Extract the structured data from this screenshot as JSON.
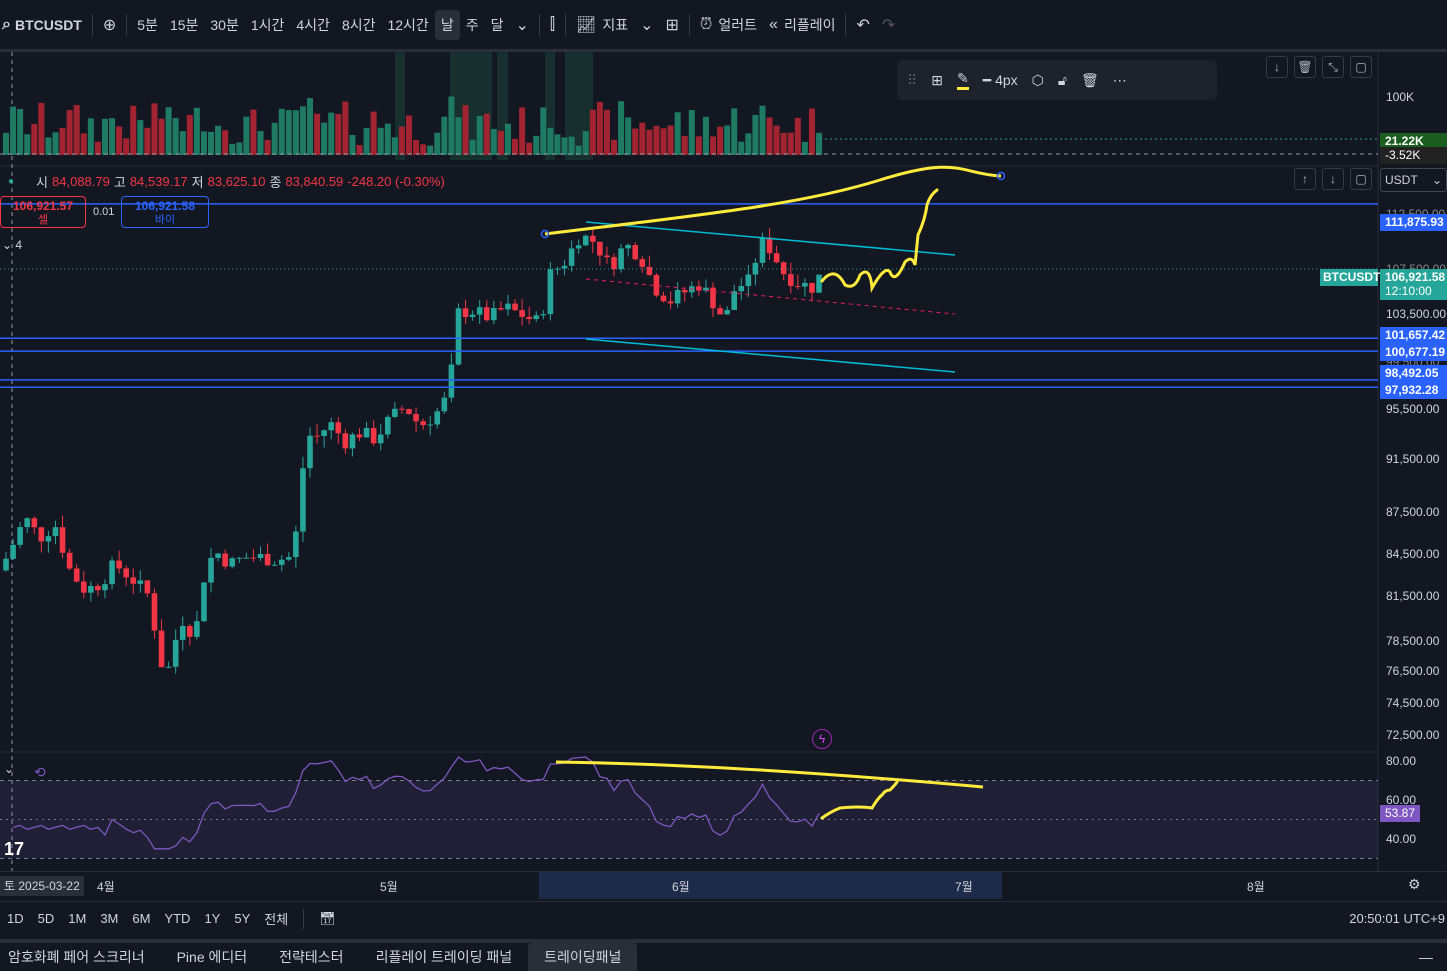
{
  "toolbar": {
    "symbol": "BTCUSDT",
    "intervals": [
      "5분",
      "15분",
      "30분",
      "1시간",
      "4시간",
      "8시간",
      "12시간",
      "날",
      "주",
      "달"
    ],
    "active_interval": "날",
    "indicators_label": "지표",
    "alert_label": "얼러트",
    "replay_label": "리플레이"
  },
  "legend": {
    "open_label": "시",
    "open": "84,088.79",
    "high_label": "고",
    "high": "84,539.17",
    "low_label": "저",
    "low": "83,625.10",
    "close_label": "종",
    "close": "83,840.59",
    "change": "-248.20 (-0.30%)"
  },
  "order": {
    "sell_price": "106,921.57",
    "sell_label": "셀",
    "spread": "0.01",
    "buy_price": "106,921.58",
    "buy_label": "바이"
  },
  "collapse_count": "4",
  "drawing_toolbar": {
    "width_label": "4px"
  },
  "currency_select": "USDT",
  "volume_axis": {
    "v100k": "100K",
    "last_vol": "21.22K",
    "last_delta": "-3.52K"
  },
  "price_axis": {
    "ticks": [
      "103,500.00",
      "95,500.00",
      "91,500.00",
      "87,500.00",
      "84,500.00",
      "81,500.00",
      "78,500.00",
      "76,500.00",
      "74,500.00",
      "72,500.00"
    ],
    "partial_ticks": [
      "112,500.00",
      "107,500.00",
      "99,500.00"
    ]
  },
  "hlines": [
    {
      "price": "111,875.93"
    },
    {
      "price": "101,657.42"
    },
    {
      "price": "100,677.19"
    },
    {
      "price": "98,492.05"
    },
    {
      "price": "97,932.28"
    }
  ],
  "last_price": {
    "symbol": "BTCUSDT",
    "price": "106,921.58",
    "countdown": "12:10:00"
  },
  "rsi_axis": {
    "t80": "80.00",
    "t60": "60.00",
    "value": "53.87",
    "t40": "40.00"
  },
  "time_axis": {
    "cursor_date": "토 2025-03-22",
    "months": [
      "4월",
      "5월",
      "6월",
      "7월",
      "8월"
    ]
  },
  "range_bar": {
    "ranges": [
      "1D",
      "5D",
      "1M",
      "3M",
      "6M",
      "YTD",
      "1Y",
      "5Y",
      "전체"
    ],
    "clock": "20:50:01 UTC+9"
  },
  "bottom_tabs": [
    "암호화폐 페어 스크리너",
    "Pine 에디터",
    "전략테스터",
    "리플레이 트레이딩 패널",
    "트레이딩패널"
  ],
  "active_bottom_tab": "트레이딩패널",
  "colors": {
    "background": "#131722",
    "up": "#26a69a",
    "down": "#f23645",
    "hline": "#2962ff",
    "channel": "#00bcd4",
    "drawing": "#ffeb3b",
    "rsi": "#7e57c2"
  },
  "chart_data": {
    "type": "candlestick",
    "ohlc": [
      [
        84088.79,
        84539.17,
        83625.1,
        83840.59
      ]
    ],
    "hlines": [
      111875.93,
      101657.42,
      100677.19,
      98492.05,
      97932.28
    ],
    "last_price": 106921.58,
    "x_axis": [
      "4월",
      "5월",
      "6월",
      "7월",
      "8월"
    ]
  }
}
